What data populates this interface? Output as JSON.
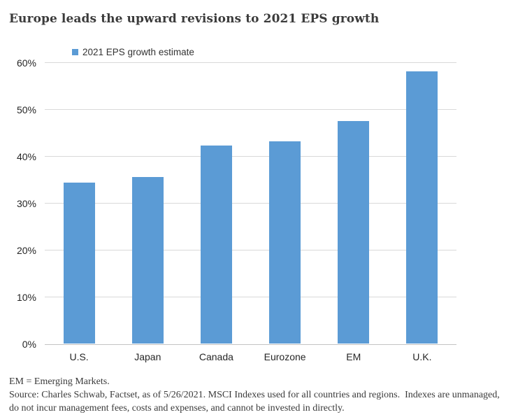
{
  "title": "Europe leads the upward revisions to 2021 EPS growth",
  "legend": {
    "label": "2021 EPS growth estimate",
    "swatch_color": "#5B9BD5"
  },
  "chart_data": {
    "type": "bar",
    "title": "Europe leads the upward revisions to 2021 EPS growth",
    "series_name": "2021 EPS growth estimate",
    "categories": [
      "U.S.",
      "Japan",
      "Canada",
      "Eurozone",
      "EM",
      "U.K."
    ],
    "values": [
      34.4,
      35.5,
      42.3,
      43.1,
      47.4,
      58.1
    ],
    "unit": "%",
    "xlabel": "",
    "ylabel": "",
    "ylim": [
      0,
      60
    ],
    "ytick_step": 10,
    "ytick_labels": [
      "0%",
      "10%",
      "20%",
      "30%",
      "40%",
      "50%",
      "60%"
    ],
    "grid": true,
    "legend_position": "top-left",
    "bar_color": "#5B9BD5",
    "gridline_color": "#d9d9d9"
  },
  "footnote": {
    "lines": [
      "EM = Emerging Markets.",
      "Source: Charles Schwab, Factset, as of 5/26/2021. MSCI Indexes used for all countries and regions.  Indexes are unmanaged,",
      "do not incur management fees, costs and expenses, and cannot be invested in directly."
    ]
  }
}
